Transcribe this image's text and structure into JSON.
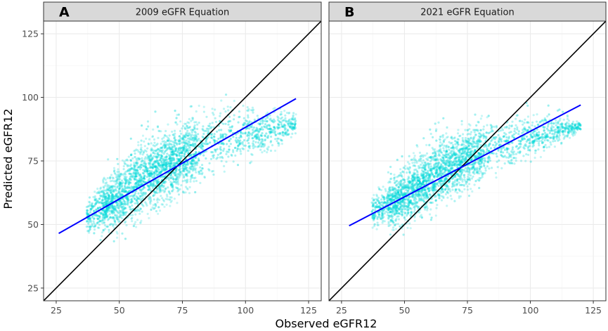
{
  "chart_data": [
    {
      "type": "scatter",
      "panel_letter": "A",
      "strip_title": "2009 eGFR Equation",
      "xlabel": "Observed eGFR12",
      "ylabel": "Predicted eGFR12",
      "xlim": [
        20,
        130
      ],
      "ylim": [
        20,
        130
      ],
      "x_ticks": [
        25,
        50,
        75,
        100,
        125
      ],
      "y_ticks": [
        25,
        50,
        75,
        100,
        125
      ],
      "grid": true,
      "point_color": "#00d8d8",
      "identity_line": {
        "x": [
          20,
          130
        ],
        "y": [
          20,
          130
        ],
        "color": "#000000"
      },
      "fit_line": {
        "x": [
          26,
          120
        ],
        "y": [
          46.5,
          99.5
        ],
        "color": "#0000ff"
      },
      "point_cloud": {
        "x_range": [
          37,
          120
        ],
        "y_range": [
          41,
          104
        ],
        "lower_edge": [
          [
            37,
            44
          ],
          [
            50,
            43
          ],
          [
            65,
            51
          ],
          [
            80,
            60
          ],
          [
            95,
            68
          ],
          [
            110,
            76
          ],
          [
            120,
            84
          ]
        ],
        "upper_edge": [
          [
            37,
            61
          ],
          [
            45,
            73
          ],
          [
            55,
            84
          ],
          [
            65,
            92
          ],
          [
            75,
            97
          ],
          [
            85,
            101
          ],
          [
            95,
            103
          ],
          [
            105,
            100
          ],
          [
            115,
            97
          ],
          [
            120,
            94
          ]
        ]
      }
    },
    {
      "type": "scatter",
      "panel_letter": "B",
      "strip_title": "2021 eGFR Equation",
      "xlabel": "Observed eGFR12",
      "ylabel": "Predicted eGFR12",
      "xlim": [
        20,
        130
      ],
      "ylim": [
        20,
        130
      ],
      "x_ticks": [
        25,
        50,
        75,
        100,
        125
      ],
      "y_ticks": [
        25,
        50,
        75,
        100,
        125
      ],
      "grid": true,
      "point_color": "#00d8d8",
      "identity_line": {
        "x": [
          20,
          130
        ],
        "y": [
          20,
          130
        ],
        "color": "#000000"
      },
      "fit_line": {
        "x": [
          28,
          120
        ],
        "y": [
          49.5,
          97
        ],
        "color": "#0000ff"
      },
      "point_cloud": {
        "x_range": [
          37,
          120
        ],
        "y_range": [
          42,
          97
        ],
        "lower_edge": [
          [
            37,
            47
          ],
          [
            50,
            45
          ],
          [
            65,
            53
          ],
          [
            80,
            62
          ],
          [
            95,
            70
          ],
          [
            110,
            78
          ],
          [
            120,
            86
          ]
        ],
        "upper_edge": [
          [
            37,
            62
          ],
          [
            45,
            72
          ],
          [
            55,
            82
          ],
          [
            65,
            89
          ],
          [
            75,
            93
          ],
          [
            85,
            96
          ],
          [
            95,
            96
          ],
          [
            105,
            96
          ],
          [
            115,
            93
          ],
          [
            120,
            91
          ]
        ]
      }
    }
  ]
}
